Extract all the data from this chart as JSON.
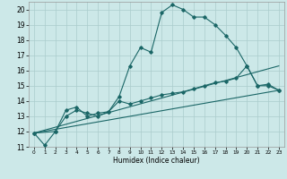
{
  "xlabel": "Humidex (Indice chaleur)",
  "bg_color": "#cce8e8",
  "grid_color": "#aacccc",
  "line_color": "#1a6666",
  "xlim": [
    -0.5,
    23.5
  ],
  "ylim": [
    11,
    20.5
  ],
  "yticks": [
    11,
    12,
    13,
    14,
    15,
    16,
    17,
    18,
    19,
    20
  ],
  "xticks": [
    0,
    1,
    2,
    3,
    4,
    5,
    6,
    7,
    8,
    9,
    10,
    11,
    12,
    13,
    14,
    15,
    16,
    17,
    18,
    19,
    20,
    21,
    22,
    23
  ],
  "line1_x": [
    0,
    1,
    2,
    3,
    4,
    5,
    6,
    7,
    8,
    9,
    10,
    11,
    12,
    13,
    14,
    15,
    16,
    17,
    18,
    19,
    20,
    21,
    22,
    23
  ],
  "line1_y": [
    11.9,
    11.1,
    12.0,
    13.4,
    13.6,
    13.0,
    13.2,
    13.3,
    14.3,
    16.3,
    17.5,
    17.2,
    19.8,
    20.3,
    20.0,
    19.5,
    19.5,
    19.0,
    18.3,
    17.5,
    16.3,
    15.0,
    15.1,
    14.7
  ],
  "line2_x": [
    0,
    23
  ],
  "line2_y": [
    11.9,
    14.7
  ],
  "line3_x": [
    0,
    23
  ],
  "line3_y": [
    11.9,
    16.3
  ],
  "line4_x": [
    0,
    2,
    3,
    4,
    5,
    6,
    7,
    8,
    9,
    10,
    11,
    12,
    13,
    14,
    15,
    16,
    17,
    18,
    19,
    20,
    21,
    22,
    23
  ],
  "line4_y": [
    11.9,
    12.0,
    13.0,
    13.4,
    13.2,
    13.0,
    13.3,
    14.0,
    13.8,
    14.0,
    14.2,
    14.4,
    14.5,
    14.6,
    14.8,
    15.0,
    15.2,
    15.3,
    15.5,
    16.3,
    15.0,
    15.0,
    14.7
  ]
}
